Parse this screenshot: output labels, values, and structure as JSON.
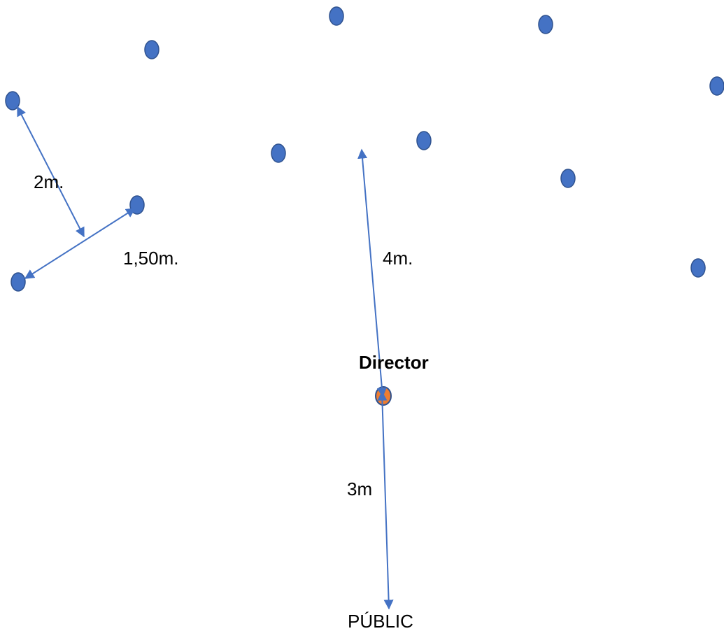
{
  "diagram": {
    "labels": {
      "distance_2m": "2m.",
      "distance_150m": "1,50m.",
      "distance_4m": "4m.",
      "distance_3m": "3m",
      "director": "Director",
      "audience": "PÚBLIC"
    },
    "colors": {
      "singer_fill": "#4472C4",
      "singer_stroke": "#2F528F",
      "director_fill": "#ED7D31",
      "director_stroke": "#2F528F",
      "arrow": "#4472C4",
      "text": "#000000"
    }
  }
}
